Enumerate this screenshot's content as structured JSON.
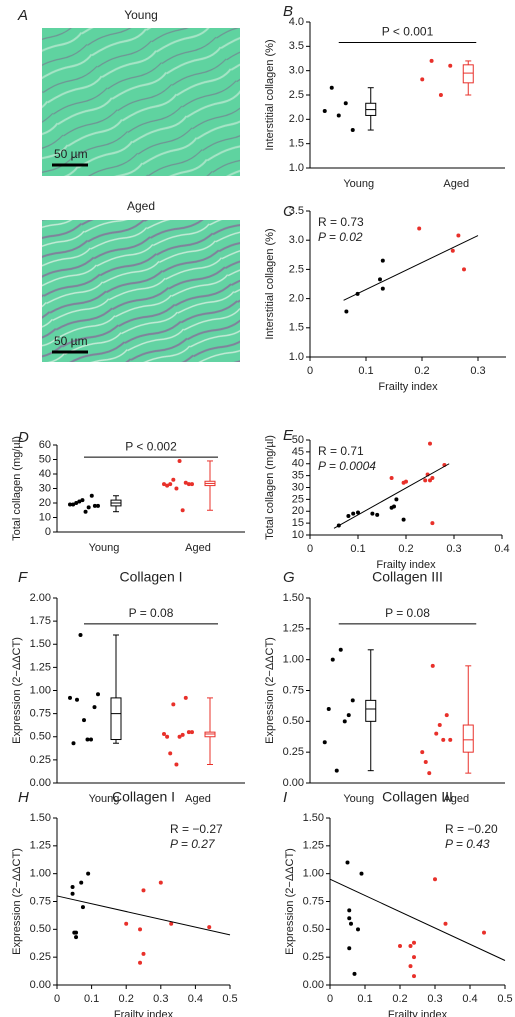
{
  "images": [
    {
      "letter": "A",
      "title": "Young",
      "scale": "50 µm"
    },
    {
      "title": "Aged",
      "scale": "50 µm"
    }
  ],
  "chart_data": [
    {
      "type": "dot_box",
      "letter": "B",
      "ylabel": "Interstitial collagen (%)",
      "categories": [
        "Young",
        "Aged"
      ],
      "ylim": [
        1,
        4
      ],
      "yticks": [
        {
          "value": 1,
          "label": "1.0"
        },
        1.5,
        {
          "value": 2,
          "label": "2.0"
        },
        2.5,
        {
          "value": 3,
          "label": "3.0"
        },
        3.5,
        {
          "value": 4,
          "label": "4.0"
        }
      ],
      "annotation": "P < 0.001",
      "groups": [
        {
          "color": "#000000",
          "values": [
            2.17,
            2.65,
            2.08,
            2.33,
            1.78
          ],
          "box": {
            "min": 1.78,
            "q1": 2.08,
            "median": 2.2,
            "q3": 2.33,
            "max": 2.65
          }
        },
        {
          "color": "#e8302a",
          "values": [
            2.82,
            3.2,
            2.5,
            3.1
          ],
          "box": {
            "min": 2.5,
            "q1": 2.75,
            "median": 2.95,
            "q3": 3.12,
            "max": 3.2
          }
        }
      ]
    },
    {
      "type": "scatter",
      "letter": "C",
      "xlabel": "Frailty index",
      "ylabel": "Interstitial collagen (%)",
      "xlim": [
        0,
        0.35
      ],
      "xticks": [
        0,
        0.1,
        0.2,
        0.3
      ],
      "ylim": [
        1,
        3.5
      ],
      "yticks": [
        {
          "value": 1,
          "label": "1.0"
        },
        1.5,
        {
          "value": 2,
          "label": "2.0"
        },
        2.5,
        {
          "value": 3,
          "label": "3.0"
        },
        3.5
      ],
      "stats": [
        "R = 0.73",
        "P = 0.02"
      ],
      "stats_corner": "top-left",
      "groups": [
        {
          "color": "#000000",
          "x": [
            0.065,
            0.085,
            0.125,
            0.13,
            0.13
          ],
          "y": [
            1.78,
            2.08,
            2.33,
            2.65,
            2.17
          ]
        },
        {
          "color": "#e8302a",
          "x": [
            0.195,
            0.255,
            0.265,
            0.275
          ],
          "y": [
            3.2,
            2.82,
            3.08,
            2.5
          ]
        }
      ],
      "fit": {
        "x": [
          0.06,
          0.3
        ],
        "y": [
          1.97,
          3.08
        ]
      }
    },
    {
      "type": "dot_box",
      "letter": "D",
      "ylabel": "Total collagen (mg/µl)",
      "categories": [
        "Young",
        "Aged"
      ],
      "ylim": [
        0,
        60
      ],
      "yticks": [
        0,
        10,
        20,
        30,
        40,
        50,
        60
      ],
      "annotation": "P < 0.002",
      "groups": [
        {
          "color": "#000000",
          "values": [
            19,
            19,
            20,
            21,
            22,
            14,
            17,
            25,
            18,
            18
          ],
          "box": {
            "min": 14,
            "q1": 18,
            "median": 20,
            "q3": 22,
            "max": 25
          }
        },
        {
          "color": "#e8302a",
          "values": [
            33,
            32,
            33,
            36,
            30,
            49,
            15,
            34,
            33,
            33
          ],
          "box": {
            "min": 15,
            "q1": 32,
            "median": 33.5,
            "q3": 35,
            "max": 49
          }
        }
      ]
    },
    {
      "type": "scatter",
      "letter": "E",
      "xlabel": "Frailty index",
      "ylabel": "Total collagen (mg/µl)",
      "xlim": [
        0,
        0.4
      ],
      "xticks": [
        0,
        0.1,
        0.2,
        0.3,
        0.4
      ],
      "ylim": [
        10,
        50
      ],
      "yticks": [
        10,
        15,
        20,
        25,
        30,
        35,
        40,
        45,
        50
      ],
      "stats": [
        "R = 0.71",
        "P = 0.0004"
      ],
      "stats_corner": "top-left",
      "groups": [
        {
          "color": "#000000",
          "x": [
            0.06,
            0.08,
            0.09,
            0.1,
            0.13,
            0.14,
            0.17,
            0.175,
            0.18,
            0.195
          ],
          "y": [
            14,
            18,
            19,
            19.5,
            19,
            18.5,
            21.5,
            22,
            25,
            16.5
          ]
        },
        {
          "color": "#e8302a",
          "x": [
            0.17,
            0.195,
            0.2,
            0.24,
            0.245,
            0.25,
            0.25,
            0.255,
            0.255,
            0.28
          ],
          "y": [
            34,
            32,
            32.5,
            33,
            35.5,
            33,
            48.5,
            15,
            34,
            39.5
          ]
        }
      ],
      "fit": {
        "x": [
          0.05,
          0.29
        ],
        "y": [
          12.8,
          40
        ]
      }
    },
    {
      "type": "dot_box",
      "letter": "F",
      "title": "Collagen I",
      "ylabel": "Expression (2−ΔΔCT)",
      "categories": [
        "Young",
        "Aged"
      ],
      "ylim": [
        0,
        2
      ],
      "yticks": [
        {
          "value": 0,
          "label": "0.00"
        },
        0.25,
        {
          "value": 0.5,
          "label": "0.50"
        },
        0.75,
        {
          "value": 1,
          "label": "1.00"
        },
        1.25,
        {
          "value": 1.5,
          "label": "1.50"
        },
        1.75,
        {
          "value": 2,
          "label": "2.00"
        }
      ],
      "annotation": "P = 0.08",
      "groups": [
        {
          "color": "#000000",
          "values": [
            0.92,
            0.43,
            0.9,
            1.6,
            0.68,
            0.47,
            0.47,
            0.82,
            0.96
          ],
          "box": {
            "min": 0.43,
            "q1": 0.47,
            "median": 0.75,
            "q3": 0.92,
            "max": 1.6
          }
        },
        {
          "color": "#e8302a",
          "values": [
            0.53,
            0.5,
            0.32,
            0.85,
            0.2,
            0.5,
            0.52,
            0.92,
            0.55,
            0.55
          ],
          "box": {
            "min": 0.2,
            "q1": 0.5,
            "median": 0.53,
            "q3": 0.55,
            "max": 0.92
          }
        }
      ]
    },
    {
      "type": "dot_box",
      "letter": "G",
      "title": "Collagen III",
      "ylabel": "Expression (2−ΔΔCT)",
      "categories": [
        "Young",
        "Aged"
      ],
      "ylim": [
        0,
        1.5
      ],
      "yticks": [
        {
          "value": 0,
          "label": "0.00"
        },
        0.25,
        {
          "value": 0.5,
          "label": "0.50"
        },
        0.75,
        {
          "value": 1,
          "label": "1.00"
        },
        1.25,
        {
          "value": 1.5,
          "label": "1.50"
        }
      ],
      "annotation": "P = 0.08",
      "groups": [
        {
          "color": "#000000",
          "values": [
            0.33,
            0.6,
            1.0,
            0.1,
            1.08,
            0.5,
            0.55,
            0.67
          ],
          "box": {
            "min": 0.1,
            "q1": 0.5,
            "median": 0.6,
            "q3": 0.67,
            "max": 1.08
          }
        },
        {
          "color": "#e8302a",
          "values": [
            0.25,
            0.17,
            0.08,
            0.95,
            0.4,
            0.47,
            0.35,
            0.55,
            0.35
          ],
          "box": {
            "min": 0.08,
            "q1": 0.25,
            "median": 0.35,
            "q3": 0.47,
            "max": 0.95
          }
        }
      ]
    },
    {
      "type": "scatter",
      "letter": "H",
      "title": "Collagen I",
      "xlabel": "Frailty index",
      "ylabel": "Expression (2−ΔΔCT)",
      "xlim": [
        0,
        0.5
      ],
      "xticks": [
        0,
        0.1,
        0.2,
        0.3,
        0.4,
        0.5
      ],
      "ylim": [
        0,
        1.5
      ],
      "yticks": [
        {
          "value": 0,
          "label": "0.00"
        },
        0.25,
        {
          "value": 0.5,
          "label": "0.50"
        },
        0.75,
        {
          "value": 1,
          "label": "1.00"
        },
        1.25,
        {
          "value": 1.5,
          "label": "1.50"
        }
      ],
      "stats": [
        "R = −0.27",
        "P = 0.27"
      ],
      "stats_corner": "top-right",
      "groups": [
        {
          "color": "#000000",
          "x": [
            0.045,
            0.045,
            0.05,
            0.055,
            0.055,
            0.07,
            0.075,
            0.09
          ],
          "y": [
            0.88,
            0.82,
            0.47,
            0.43,
            0.47,
            0.92,
            0.7,
            1.0
          ]
        },
        {
          "color": "#e8302a",
          "x": [
            0.2,
            0.24,
            0.24,
            0.25,
            0.25,
            0.3,
            0.33,
            0.44
          ],
          "y": [
            0.55,
            0.5,
            0.2,
            0.85,
            0.28,
            0.92,
            0.55,
            0.52
          ]
        }
      ],
      "fit": {
        "x": [
          0,
          0.5
        ],
        "y": [
          0.8,
          0.45
        ]
      }
    },
    {
      "type": "scatter",
      "letter": "I",
      "title": "Collagen III",
      "xlabel": "Frailty index",
      "ylabel": "Expression (2−ΔΔCT)",
      "xlim": [
        0,
        0.5
      ],
      "xticks": [
        0,
        0.1,
        0.2,
        0.3,
        0.4,
        0.5
      ],
      "ylim": [
        0,
        1.5
      ],
      "yticks": [
        {
          "value": 0,
          "label": "0.00"
        },
        0.25,
        {
          "value": 0.5,
          "label": "0.50"
        },
        0.75,
        {
          "value": 1,
          "label": "1.00"
        },
        1.25,
        {
          "value": 1.5,
          "label": "1.50"
        }
      ],
      "stats": [
        "R = −0.20",
        "P = 0.43"
      ],
      "stats_corner": "top-right",
      "groups": [
        {
          "color": "#000000",
          "x": [
            0.05,
            0.055,
            0.055,
            0.055,
            0.06,
            0.07,
            0.08,
            0.09
          ],
          "y": [
            1.1,
            0.67,
            0.6,
            0.33,
            0.55,
            0.1,
            0.5,
            1.0
          ]
        },
        {
          "color": "#e8302a",
          "x": [
            0.2,
            0.23,
            0.23,
            0.24,
            0.24,
            0.24,
            0.3,
            0.33,
            0.44
          ],
          "y": [
            0.35,
            0.35,
            0.17,
            0.25,
            0.38,
            0.08,
            0.95,
            0.55,
            0.47
          ]
        }
      ],
      "fit": {
        "x": [
          0,
          0.5
        ],
        "y": [
          0.95,
          0.22
        ]
      }
    }
  ]
}
